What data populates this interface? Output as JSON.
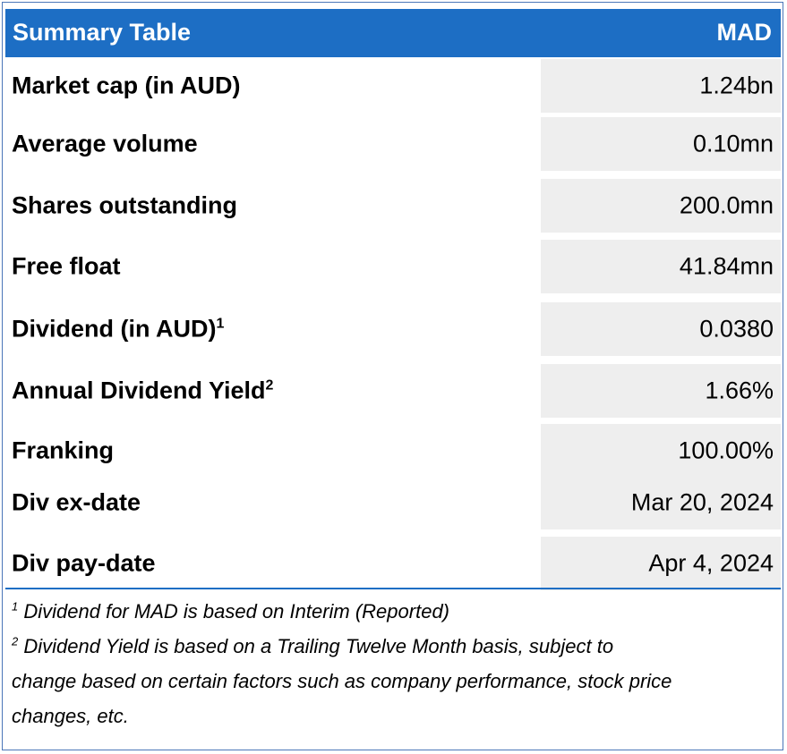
{
  "header": {
    "title": "Summary Table",
    "ticker": "MAD"
  },
  "rows": [
    {
      "label": "Market cap (in AUD)",
      "sup": "",
      "value": "1.24bn"
    },
    {
      "label": "Average volume",
      "sup": "",
      "value": "0.10mn"
    },
    {
      "label": "Shares outstanding",
      "sup": "",
      "value": "200.0mn"
    },
    {
      "label": "Free float",
      "sup": "",
      "value": "41.84mn"
    },
    {
      "label": "Dividend (in AUD)",
      "sup": "1",
      "value": "0.0380"
    },
    {
      "label": "Annual Dividend Yield",
      "sup": "2",
      "value": "1.66%"
    },
    {
      "label": "Franking",
      "sup": "",
      "value": "100.00%"
    },
    {
      "label": "Div ex-date",
      "sup": "",
      "value": "Mar 20, 2024"
    },
    {
      "label": "Div pay-date",
      "sup": "",
      "value": "Apr 4, 2024"
    }
  ],
  "footnotes": [
    {
      "marker": "1",
      "lines": [
        "Dividend for MAD is based on Interim (Reported)"
      ]
    },
    {
      "marker": "2",
      "lines": [
        " Dividend Yield is based on a Trailing Twelve Month basis, subject to",
        "change based on certain factors such as company performance, stock price",
        "changes, etc."
      ]
    }
  ],
  "colors": {
    "header_bg": "#1d6ec4",
    "header_text": "#ffffff",
    "value_bg": "#eeeeee",
    "border": "#4a76b8"
  }
}
